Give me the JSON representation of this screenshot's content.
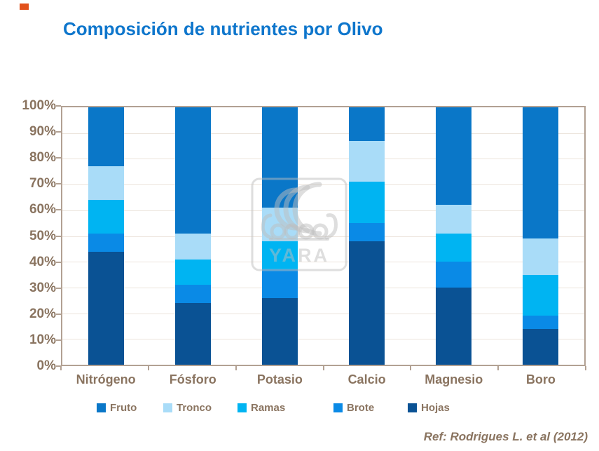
{
  "title": {
    "text": "Composición de nutrientes por Olivo",
    "color": "#0E76CC"
  },
  "corner_marker": {
    "color": "#E2511B"
  },
  "watermark": {
    "brand": "YARA"
  },
  "footer": {
    "text": "Ref: Rodrigues L. et al (2012)",
    "color": "#8A7460"
  },
  "chart_data": {
    "type": "bar",
    "variant": "stacked-100-percent",
    "title": "Composición de nutrientes por Olivo",
    "categories": [
      "Nitrógeno",
      "Fósforo",
      "Potasio",
      "Calcio",
      "Magnesio",
      "Boro"
    ],
    "series": [
      {
        "name": "Fruto",
        "color": "#0A77C8",
        "values": [
          23,
          49,
          39,
          13,
          38,
          51
        ]
      },
      {
        "name": "Tronco",
        "color": "#A9DCF8",
        "values": [
          13,
          10,
          13,
          16,
          11,
          14
        ]
      },
      {
        "name": "Ramas",
        "color": "#00B4F2",
        "values": [
          13,
          10,
          11,
          16,
          11,
          16
        ]
      },
      {
        "name": "Brote",
        "color": "#0A8AE6",
        "values": [
          7,
          7,
          11,
          7,
          10,
          5
        ]
      },
      {
        "name": "Hojas",
        "color": "#0A5294",
        "values": [
          44,
          24,
          26,
          48,
          30,
          14
        ]
      }
    ],
    "stack_order_bottom_to_top": [
      "Hojas",
      "Brote",
      "Ramas",
      "Tronco",
      "Fruto"
    ],
    "legend": {
      "position": "bottom",
      "order": [
        "Fruto",
        "Tronco",
        "Ramas",
        "Brote",
        "Hojas"
      ]
    },
    "y_axis": {
      "min": 0,
      "max": 100,
      "tick_step": 10,
      "tick_labels": [
        "0%",
        "10%",
        "20%",
        "30%",
        "40%",
        "50%",
        "60%",
        "70%",
        "80%",
        "90%",
        "100%"
      ],
      "label_color": "#8A7460"
    },
    "x_axis": {
      "label_color": "#8A7460"
    },
    "grid": true
  }
}
